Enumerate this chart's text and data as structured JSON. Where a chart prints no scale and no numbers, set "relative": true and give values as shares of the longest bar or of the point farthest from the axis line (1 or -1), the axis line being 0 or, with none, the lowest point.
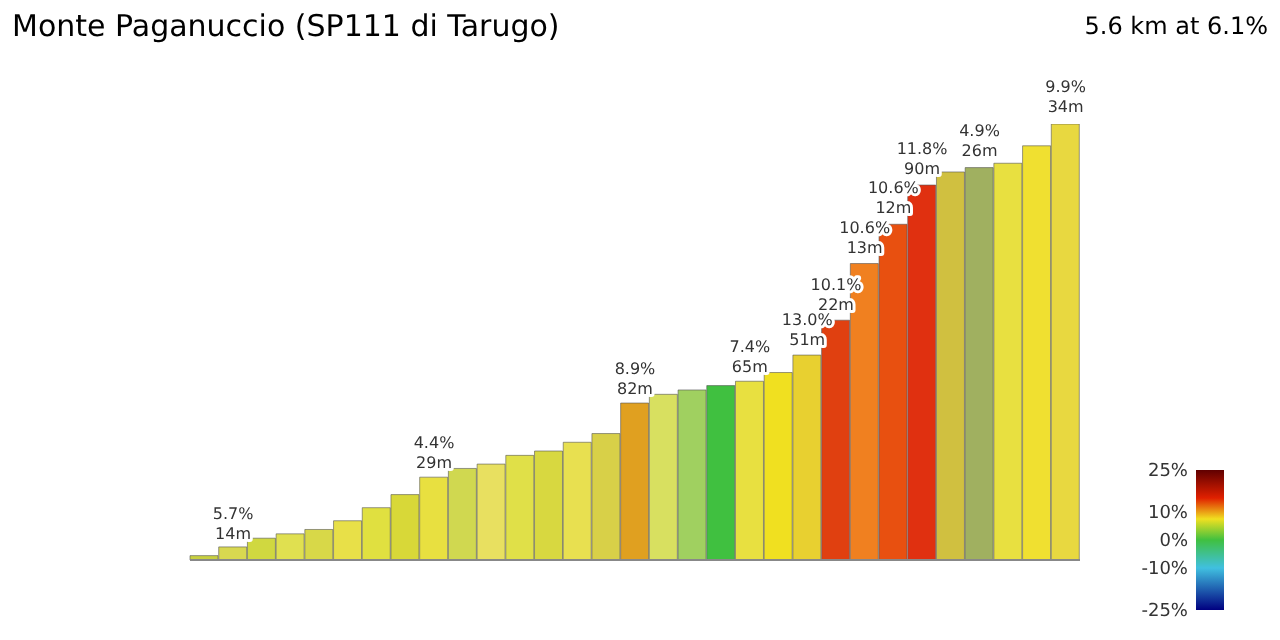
{
  "chart_data": {
    "type": "bar",
    "title": "Monte Paganuccio (SP111 di Tarugo)",
    "subtitle": "5.6 km at 6.1%",
    "relative": true,
    "categories": [
      null,
      null,
      null,
      null,
      null,
      null,
      null,
      null,
      null,
      null,
      null,
      null,
      null,
      null,
      null,
      null,
      null,
      null,
      null,
      null,
      null,
      null,
      null,
      null,
      null,
      null,
      null,
      null,
      null,
      null,
      null
    ],
    "values": [
      0.01,
      0.03,
      0.05,
      0.06,
      0.07,
      0.09,
      0.12,
      0.15,
      0.19,
      0.21,
      0.22,
      0.24,
      0.25,
      0.27,
      0.29,
      0.36,
      0.38,
      0.39,
      0.4,
      0.41,
      0.43,
      0.47,
      0.55,
      0.68,
      0.77,
      0.86,
      0.89,
      0.9,
      0.91,
      0.95,
      1.0
    ],
    "colors": [
      "#c8d040",
      "#d8d850",
      "#d0d840",
      "#e0e050",
      "#d8d848",
      "#e8e048",
      "#e0e040",
      "#d8d838",
      "#e8e040",
      "#d0d850",
      "#e8e060",
      "#e0e048",
      "#d8d840",
      "#e8e050",
      "#d8d048",
      "#e0a020",
      "#d8e060",
      "#a0d060",
      "#40c040",
      "#e8e040",
      "#f0e020",
      "#e8d030",
      "#e04010",
      "#f08020",
      "#e85010",
      "#e03010",
      "#d0c040",
      "#a0b060",
      "#e8e040",
      "#f0e030",
      "#e8d840"
    ],
    "annotations": [
      {
        "text": "5.7%\n14m",
        "y": 0.03
      },
      {
        "text": "4.4%\n29m",
        "y": 0.19
      },
      {
        "text": "8.9%\n82m",
        "y": 0.36
      },
      {
        "text": "7.4%\n65m",
        "y": 0.41
      },
      {
        "text": "13.0%\n51m",
        "y": 0.47
      },
      {
        "text": "10.1%\n22m",
        "y": 0.55
      },
      {
        "text": "10.6%\n13m",
        "y": 0.68
      },
      {
        "text": "10.6%\n12m",
        "y": 0.77
      },
      {
        "text": "11.8%\n90m",
        "y": 0.86
      },
      {
        "text": "4.9%\n26m",
        "y": 0.9
      },
      {
        "text": "9.9%\n34m",
        "y": 1.0
      }
    ],
    "clim": [
      -25,
      25
    ],
    "cticks": [
      {
        "value": 25,
        "label": "25%"
      },
      {
        "value": 10,
        "label": "10%"
      },
      {
        "value": 0,
        "label": "0%"
      },
      {
        "value": -10,
        "label": "-10%"
      },
      {
        "value": -25,
        "label": "-25%"
      }
    ]
  }
}
